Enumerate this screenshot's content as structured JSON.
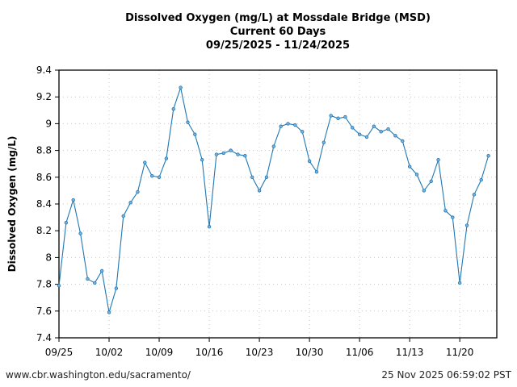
{
  "chart_data": {
    "type": "line",
    "title": [
      "Dissolved Oxygen (mg/L) at Mossdale Bridge (MSD)",
      "Current 60 Days",
      "09/25/2025 - 11/24/2025"
    ],
    "xlabel": "",
    "ylabel": "Dissolved Oxygen (mg/L)",
    "ylim": [
      7.4,
      9.4
    ],
    "xlim": [
      "2025-09-25",
      "2025-11-27"
    ],
    "yticks": [
      "7.4",
      "7.6",
      "7.8",
      "8",
      "8.2",
      "8.4",
      "8.6",
      "8.8",
      "9",
      "9.2",
      "9.4"
    ],
    "xticks": [
      "09/25",
      "10/02",
      "10/09",
      "10/16",
      "10/23",
      "10/30",
      "11/06",
      "11/13",
      "11/20"
    ],
    "grid": true,
    "color": "#1f77b4",
    "start_date": "2025-09-25",
    "values": [
      7.79,
      8.26,
      8.43,
      8.18,
      7.84,
      7.81,
      7.9,
      7.59,
      7.77,
      8.31,
      8.41,
      8.49,
      8.71,
      8.61,
      8.6,
      8.74,
      9.11,
      9.27,
      9.01,
      8.92,
      8.73,
      8.23,
      8.77,
      8.78,
      8.8,
      8.77,
      8.76,
      8.6,
      8.5,
      8.6,
      8.83,
      8.98,
      9.0,
      8.99,
      8.94,
      8.72,
      8.64,
      8.86,
      9.06,
      9.04,
      9.05,
      8.97,
      8.92,
      8.9,
      8.98,
      8.94,
      8.96,
      8.91,
      8.87,
      8.68,
      8.62,
      8.5,
      8.57,
      8.73,
      8.35,
      8.3,
      7.81,
      8.24,
      8.47,
      8.58,
      8.76
    ]
  },
  "footer": {
    "url": "www.cbr.washington.edu/sacramento/",
    "timestamp": "25 Nov 2025 06:59:02 PST"
  }
}
